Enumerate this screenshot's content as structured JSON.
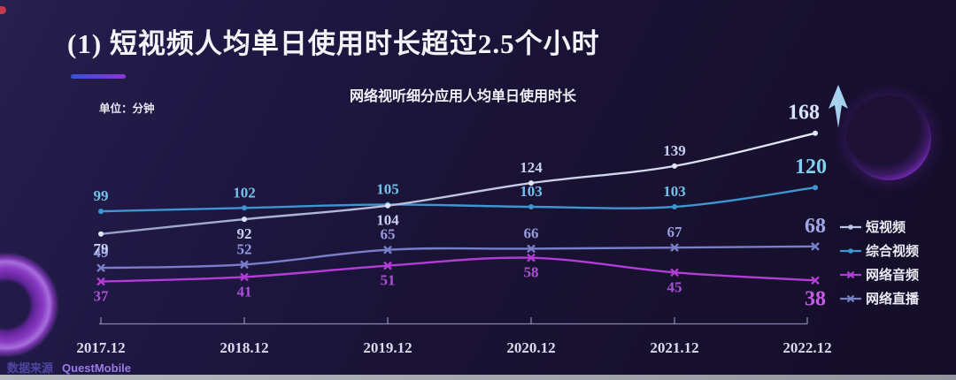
{
  "page": {
    "title": "(1) 短视频人均单日使用时长超过2.5个小时",
    "subtitle": "网络视听细分应用人均单日使用时长",
    "unit_label": "单位：分钟",
    "source_label": "数据来源",
    "source_name": "QuestMobile"
  },
  "chart_data": {
    "type": "line",
    "title": "网络视听细分应用人均单日使用时长",
    "unit": "分钟",
    "categories": [
      "2017.12",
      "2018.12",
      "2019.12",
      "2020.12",
      "2021.12",
      "2022.12"
    ],
    "ylim": [
      0,
      285
    ],
    "grid": false,
    "legend_position": "right",
    "series": [
      {
        "name": "短视频",
        "values": [
          79,
          92,
          104,
          124,
          139,
          168
        ],
        "color": "#bdc3e6",
        "gradient": [
          "#9aa0c6",
          "#e6ebfa"
        ],
        "label_color": "#c9cff0",
        "end_label_color": "#d9e4fa",
        "marker": "dot",
        "label_sides": [
          "below",
          "below",
          "below",
          "above",
          "above",
          "above"
        ],
        "end_dx": -13
      },
      {
        "name": "综合视频",
        "values": [
          99,
          102,
          105,
          103,
          103,
          120
        ],
        "color": "#3e95cf",
        "label_color": "#74c1ea",
        "end_label_color": "#7fd2f4",
        "marker": "dot",
        "label_sides": [
          "above",
          "above",
          "above",
          "above",
          "above",
          "above"
        ],
        "end_dx": -5
      },
      {
        "name": "网络音频",
        "values": [
          37,
          41,
          51,
          58,
          45,
          38
        ],
        "color": "#b33cd6",
        "label_color": "#aa50d4",
        "end_label_color": "#c75ce8",
        "marker": "x",
        "label_sides": [
          "below",
          "below",
          "below",
          "below",
          "below",
          "below"
        ],
        "end_dx": 0
      },
      {
        "name": "网络直播",
        "values": [
          49,
          52,
          65,
          66,
          67,
          68
        ],
        "color": "#787ec8",
        "label_color": "#959ade",
        "end_label_color": "#a2a7e6",
        "marker": "x",
        "label_sides": [
          "above",
          "above",
          "above",
          "above",
          "above",
          "above"
        ],
        "end_dx": 0
      }
    ],
    "annotations": [
      {
        "type": "up-arrow",
        "series": "短视频",
        "category": "2022.12",
        "color": "#a7d3f0"
      }
    ]
  }
}
